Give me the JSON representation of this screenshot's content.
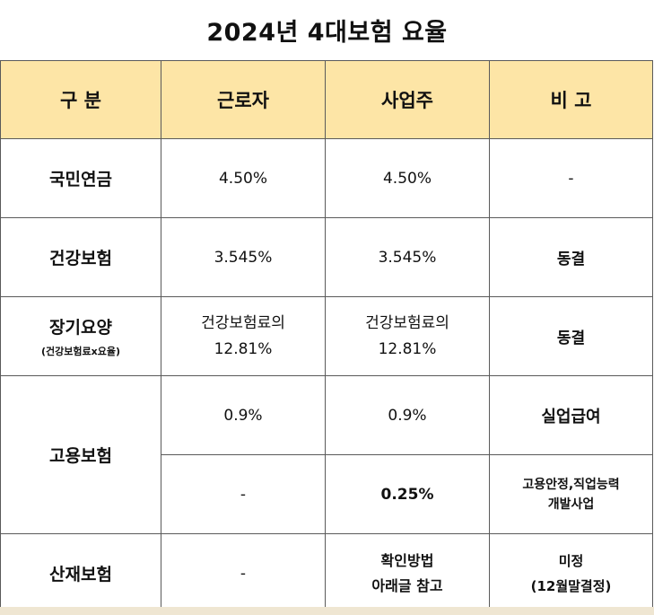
{
  "title": "2024년 4대보험 요율",
  "headers": [
    "구 분",
    "근로자",
    "사업주",
    "비 고"
  ],
  "rows": {
    "national_pension": {
      "label": "국민연금",
      "worker": "4.50%",
      "employer": "4.50%",
      "note": "-"
    },
    "health": {
      "label": "건강보험",
      "worker": "3.545%",
      "employer": "3.545%",
      "note": "동결"
    },
    "ltc": {
      "label": "장기요양",
      "label_sub": "(건강보험료x요율)",
      "worker_line1": "건강보험료의",
      "worker_line2": "12.81%",
      "employer_line1": "건강보험료의",
      "employer_line2": "12.81%",
      "note": "동결"
    },
    "employment": {
      "label": "고용보험",
      "row1": {
        "worker": "0.9%",
        "employer": "0.9%",
        "note": "실업급여"
      },
      "row2": {
        "worker": "-",
        "employer": "0.25%",
        "note_line1": "고용안정,직업능력",
        "note_line2": "개발사업"
      }
    },
    "industrial": {
      "label": "산재보험",
      "worker": "-",
      "employer_line1": "확인방법",
      "employer_line2": "아래글 참고",
      "note_line1": "미정",
      "note_line2": "(12월말결정)"
    }
  }
}
